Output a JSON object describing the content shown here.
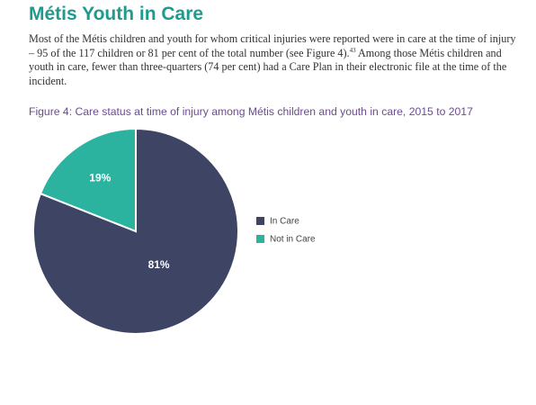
{
  "section": {
    "title": "Métis Youth in Care",
    "paragraph_before_note": "Most of the Métis children and youth for whom critical injuries were reported were in care at the time of injury – 95 of the 117 children or 81 per cent of the total number (see Figure 4).",
    "footnote_ref": "43",
    "paragraph_after_note": " Among those Métis children and youth in care, fewer than three-quarters (74 per cent) had a Care Plan in their electronic file at the time of the incident."
  },
  "figure": {
    "title": "Figure 4: Care status at time of injury among Métis children and youth in care, 2015 to 2017"
  },
  "colors": {
    "heading": "#1f9a8e",
    "figure_title": "#6b4c8f",
    "in_care": "#3d4464",
    "not_in_care": "#2bb3a0",
    "slice_label": "#ffffff",
    "legend_text": "#444444"
  },
  "chart_data": {
    "type": "pie",
    "title": "",
    "slices": [
      {
        "name": "In Care",
        "value": 81,
        "label": "81%"
      },
      {
        "name": "Not in Care",
        "value": 19,
        "label": "19%"
      }
    ],
    "legend": [
      "In Care",
      "Not in Care"
    ],
    "legend_position": "right"
  }
}
